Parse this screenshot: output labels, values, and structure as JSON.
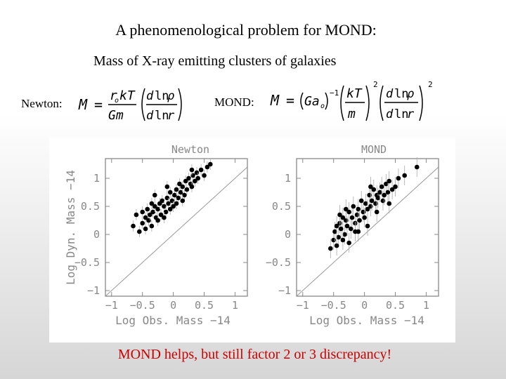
{
  "slide": {
    "title": "A phenomenological problem for MOND:",
    "subtitle": "Mass of X-ray emitting clusters of galaxies",
    "newton_label": "Newton:",
    "mond_label": "MOND:",
    "footer": "MOND helps, but still factor 2 or 3 discrepancy!",
    "footer_color": "#cc0000"
  },
  "equations": {
    "newton": "M = (r_o kT / G m) (d ln ρ / d ln r)",
    "mond": "M = (G a_o)^-1 (kT / m)^2 (d ln ρ / d ln r)^2"
  },
  "chart_data": [
    {
      "type": "scatter",
      "title": "Newton",
      "xlabel": "Log Obs. Mass −14",
      "ylabel": "Log Dyn. Mass −14",
      "xlim": [
        -1.1,
        1.2
      ],
      "ylim": [
        -1.1,
        1.35
      ],
      "xticks": [
        "−1",
        "−0.5",
        "0",
        "0.5",
        "1"
      ],
      "yticks": [
        "−1",
        "−0.5",
        "0",
        "0.5",
        "1"
      ],
      "reference_line": "y = x",
      "series": [
        {
          "points": [
            [
              -0.55,
              0.05
            ],
            [
              -0.5,
              0.2
            ],
            [
              -0.45,
              0.3
            ],
            [
              -0.4,
              0.25
            ],
            [
              -0.42,
              0.45
            ],
            [
              -0.38,
              0.35
            ],
            [
              -0.35,
              0.15
            ],
            [
              -0.33,
              0.4
            ],
            [
              -0.3,
              0.5
            ],
            [
              -0.28,
              0.3
            ],
            [
              -0.25,
              0.45
            ],
            [
              -0.22,
              0.55
            ],
            [
              -0.2,
              0.35
            ],
            [
              -0.18,
              0.6
            ],
            [
              -0.15,
              0.5
            ],
            [
              -0.12,
              0.4
            ],
            [
              -0.1,
              0.65
            ],
            [
              -0.08,
              0.55
            ],
            [
              -0.05,
              0.75
            ],
            [
              -0.02,
              0.6
            ],
            [
              0.0,
              0.5
            ],
            [
              0.02,
              0.7
            ],
            [
              0.05,
              0.8
            ],
            [
              0.08,
              0.65
            ],
            [
              0.1,
              0.9
            ],
            [
              0.12,
              0.75
            ],
            [
              0.15,
              0.85
            ],
            [
              0.18,
              0.7
            ],
            [
              0.2,
              0.95
            ],
            [
              0.22,
              0.8
            ],
            [
              0.25,
              1.0
            ],
            [
              0.28,
              0.9
            ],
            [
              0.3,
              0.85
            ],
            [
              0.32,
              1.05
            ],
            [
              0.35,
              0.95
            ],
            [
              0.38,
              1.1
            ],
            [
              0.4,
              1.0
            ],
            [
              0.45,
              1.15
            ],
            [
              0.5,
              1.05
            ],
            [
              0.55,
              1.2
            ],
            [
              -0.6,
              0.35
            ],
            [
              -0.5,
              0.4
            ],
            [
              -0.35,
              0.55
            ],
            [
              -0.25,
              0.25
            ],
            [
              -0.15,
              0.3
            ],
            [
              -0.05,
              0.45
            ],
            [
              0.05,
              0.55
            ],
            [
              0.15,
              0.6
            ],
            [
              -0.65,
              0.15
            ],
            [
              -0.45,
              0.1
            ],
            [
              0.3,
              1.15
            ],
            [
              0.6,
              1.25
            ],
            [
              -0.3,
              0.7
            ],
            [
              -0.1,
              0.85
            ]
          ]
        }
      ]
    },
    {
      "type": "scatter",
      "title": "MOND",
      "xlabel": "Log Obs. Mass −14",
      "ylabel": "",
      "xlim": [
        -1.1,
        1.2
      ],
      "ylim": [
        -1.1,
        1.35
      ],
      "xticks": [
        "−1",
        "−0.5",
        "0",
        "0.5",
        "1"
      ],
      "yticks": [
        "−1",
        "−0.5",
        "0",
        "0.5",
        "1"
      ],
      "reference_line": "y = x",
      "series": [
        {
          "points": [
            [
              -0.55,
              -0.25
            ],
            [
              -0.5,
              -0.1
            ],
            [
              -0.48,
              0.05
            ],
            [
              -0.45,
              0.15
            ],
            [
              -0.42,
              -0.05
            ],
            [
              -0.4,
              0.2
            ],
            [
              -0.38,
              0.1
            ],
            [
              -0.35,
              0.3
            ],
            [
              -0.32,
              0.0
            ],
            [
              -0.3,
              0.25
            ],
            [
              -0.28,
              0.15
            ],
            [
              -0.25,
              0.4
            ],
            [
              -0.22,
              0.1
            ],
            [
              -0.2,
              0.3
            ],
            [
              -0.18,
              0.5
            ],
            [
              -0.15,
              0.2
            ],
            [
              -0.12,
              0.35
            ],
            [
              -0.1,
              0.45
            ],
            [
              -0.08,
              0.25
            ],
            [
              -0.05,
              0.6
            ],
            [
              -0.02,
              0.4
            ],
            [
              0.0,
              0.3
            ],
            [
              0.02,
              0.55
            ],
            [
              0.05,
              0.45
            ],
            [
              0.08,
              0.7
            ],
            [
              0.1,
              0.5
            ],
            [
              0.12,
              0.6
            ],
            [
              0.15,
              0.8
            ],
            [
              0.18,
              0.55
            ],
            [
              0.2,
              0.7
            ],
            [
              0.22,
              0.65
            ],
            [
              0.25,
              0.75
            ],
            [
              0.28,
              0.85
            ],
            [
              0.3,
              0.6
            ],
            [
              0.32,
              0.7
            ],
            [
              0.35,
              0.9
            ],
            [
              0.38,
              0.75
            ],
            [
              0.4,
              0.95
            ],
            [
              0.45,
              0.8
            ],
            [
              0.5,
              0.85
            ],
            [
              0.55,
              1.0
            ],
            [
              0.65,
              1.05
            ],
            [
              0.85,
              1.2
            ],
            [
              -0.45,
              -0.2
            ],
            [
              -0.35,
              -0.1
            ],
            [
              -0.25,
              -0.15
            ],
            [
              -0.15,
              0.05
            ],
            [
              0.05,
              0.15
            ],
            [
              -0.3,
              0.45
            ],
            [
              -0.1,
              0.05
            ],
            [
              0.2,
              0.4
            ],
            [
              -0.4,
              0.35
            ],
            [
              0.1,
              0.85
            ],
            [
              0.4,
              0.55
            ]
          ]
        }
      ]
    }
  ]
}
